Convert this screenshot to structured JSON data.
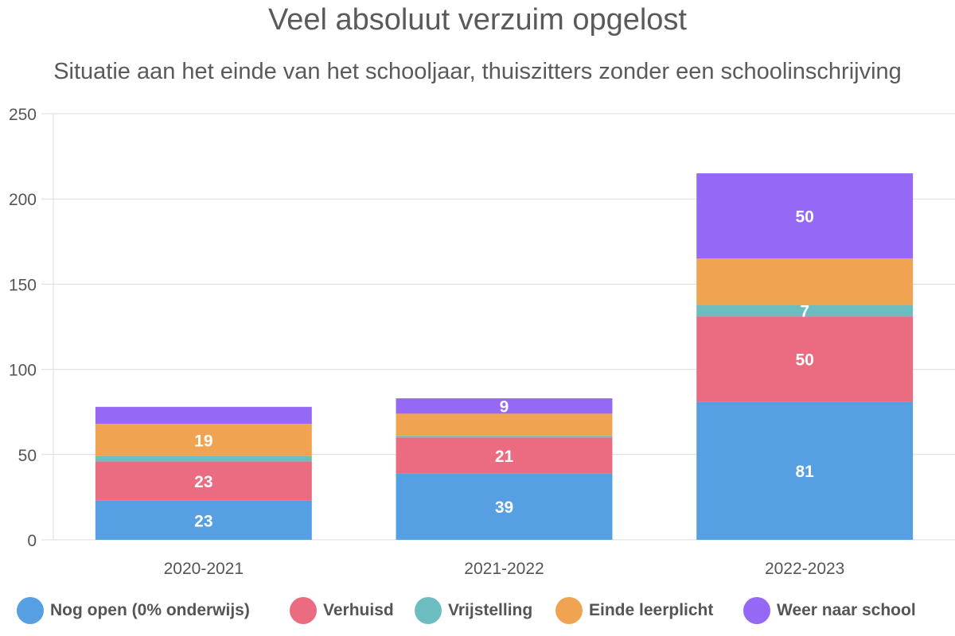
{
  "chart_data": {
    "type": "bar",
    "stacked": true,
    "title": "Veel absoluut verzuim opgelost",
    "subtitle": "Situatie aan het einde van het schooljaar, thuiszitters zonder een schoolinschrijving",
    "categories": [
      "2020-2021",
      "2021-2022",
      "2022-2023"
    ],
    "ylim": [
      0,
      250
    ],
    "yticks": [
      "0",
      "50",
      "100",
      "150",
      "200",
      "250"
    ],
    "grid": true,
    "legend_position": "bottom",
    "series": [
      {
        "name": "Nog open (0% onderwijs)",
        "color": "#569fe3",
        "values": [
          23,
          39,
          81
        ],
        "labels": [
          "23",
          "39",
          "81"
        ]
      },
      {
        "name": "Verhuisd",
        "color": "#eb6c80",
        "values": [
          23,
          21,
          50
        ],
        "labels": [
          "23",
          "21",
          "50"
        ]
      },
      {
        "name": "Vrijstelling",
        "color": "#6bbdbf",
        "values": [
          3,
          1,
          7
        ],
        "labels": [
          "",
          "",
          "7"
        ]
      },
      {
        "name": "Einde leerplicht",
        "color": "#f0a452",
        "values": [
          19,
          13,
          27
        ],
        "labels": [
          "19",
          "",
          ""
        ]
      },
      {
        "name": "Weer naar school",
        "color": "#9568f5",
        "values": [
          10,
          9,
          50
        ],
        "labels": [
          "",
          "9",
          "50"
        ]
      }
    ]
  }
}
